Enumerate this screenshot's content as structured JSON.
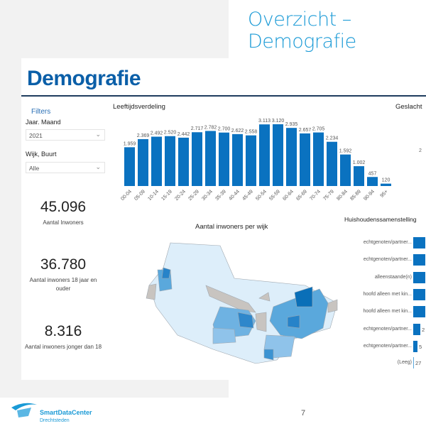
{
  "slide": {
    "title": "Overzicht – Demografie",
    "page_number": "7",
    "logo_name": "SmartDataCenter",
    "logo_sub": "Drechtsteden"
  },
  "dashboard": {
    "title": "Demografie",
    "filters": {
      "heading": "Filters",
      "jaar_label": "Jaar. Maand",
      "jaar_value": "2021",
      "wijk_label": "Wijk, Buurt",
      "wijk_value": "Alle"
    },
    "kpis": [
      {
        "value": "45.096",
        "label": "Aantal Inwoners"
      },
      {
        "value": "36.780",
        "label": "Aantal inwoners 18 jaar en ouder"
      },
      {
        "value": "8.316",
        "label": "Aantal inwoners jonger dan 18"
      }
    ],
    "gender_title": "Geslacht",
    "gender_partial_label": "2",
    "map_title": "Aantal inwoners per wijk",
    "household": {
      "title": "Huishoudenssamenstelling",
      "rows": [
        {
          "label": "echtgenoten/partner...",
          "value_text": ""
        },
        {
          "label": "echtgenoten/partner...",
          "value_text": ""
        },
        {
          "label": "alleenstaande(n)",
          "value_text": ""
        },
        {
          "label": "hoofd alleen met kin...",
          "value_text": ""
        },
        {
          "label": "hoofd alleen met kin...",
          "value_text": ""
        },
        {
          "label": "echtgenoten/partner...",
          "value_text": "2"
        },
        {
          "label": "echtgenoten/partner...",
          "value_text": "5"
        },
        {
          "label": "(Leeg)",
          "value_text": "27"
        }
      ]
    }
  },
  "chart_data": {
    "type": "bar",
    "title": "Leeftijdsverdeling",
    "categories": [
      "00-04",
      "05-09",
      "10-14",
      "15-19",
      "20-24",
      "25-29",
      "30-34",
      "35-39",
      "40-44",
      "45-49",
      "50-54",
      "55-59",
      "60-64",
      "65-69",
      "70-74",
      "75-79",
      "80-84",
      "85-89",
      "90-94",
      "95+"
    ],
    "values": [
      1959,
      2369,
      2492,
      2520,
      2442,
      2717,
      2782,
      2700,
      2622,
      2558,
      3113,
      3120,
      2935,
      2657,
      2705,
      2234,
      1592,
      1002,
      457,
      120
    ],
    "data_labels": [
      "1.959",
      "2.369",
      "2.492",
      "2.520",
      "2.442",
      "2.717",
      "2.782",
      "2.700",
      "2.622",
      "2.558",
      "3.113",
      "3.120",
      "2.935",
      "2.657",
      "2.705",
      "2.234",
      "1.592",
      "1.002",
      "457",
      "120"
    ],
    "color": "#0a72c0",
    "grid": false
  },
  "colors": {
    "accent": "#0b5fa8",
    "slide_title": "#1a9ad6",
    "bar": "#0a72c0"
  }
}
